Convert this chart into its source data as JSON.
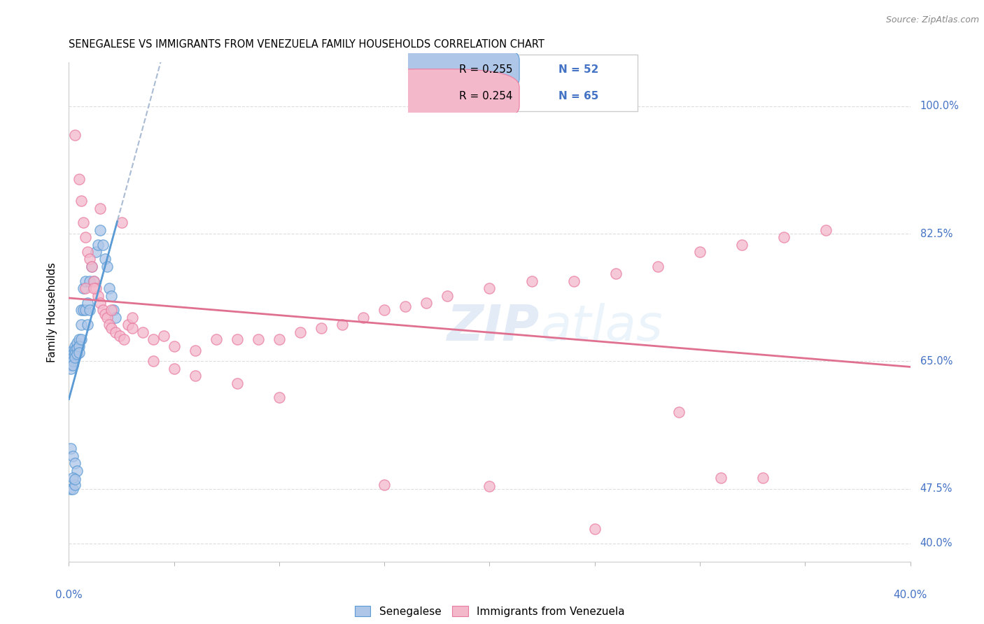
{
  "title": "SENEGALESE VS IMMIGRANTS FROM VENEZUELA FAMILY HOUSEHOLDS CORRELATION CHART",
  "source": "Source: ZipAtlas.com",
  "ylabel": "Family Households",
  "watermark_zip": "ZIP",
  "watermark_atlas": "atlas",
  "legend_blue_r": "R = 0.255",
  "legend_blue_n": "N = 52",
  "legend_pink_r": "R = 0.254",
  "legend_pink_n": "N = 65",
  "blue_face": "#aec6e8",
  "blue_edge": "#5b9bd5",
  "pink_face": "#f4b8cb",
  "pink_edge": "#e87ca0",
  "blue_line_color": "#5b9bd5",
  "pink_line_color": "#e07090",
  "dashed_line_color": "#aabbd4",
  "grid_color": "#dddddd",
  "ytick_color": "#4472c4",
  "xlabel_color": "#4472c4",
  "xlim": [
    0.0,
    0.4
  ],
  "ylim": [
    0.375,
    1.06
  ],
  "ytick_vals": [
    0.4,
    0.475,
    0.65,
    0.825,
    1.0
  ],
  "ytick_labels": [
    "40.0%",
    "47.5%",
    "65.0%",
    "82.5%",
    "100.0%"
  ],
  "blue_x": [
    0.001,
    0.001,
    0.001,
    0.001,
    0.001,
    0.002,
    0.002,
    0.002,
    0.002,
    0.002,
    0.003,
    0.003,
    0.003,
    0.003,
    0.004,
    0.004,
    0.004,
    0.005,
    0.005,
    0.005,
    0.006,
    0.006,
    0.006,
    0.007,
    0.007,
    0.008,
    0.008,
    0.009,
    0.009,
    0.01,
    0.01,
    0.011,
    0.012,
    0.013,
    0.014,
    0.015,
    0.016,
    0.017,
    0.018,
    0.019,
    0.02,
    0.021,
    0.022,
    0.001,
    0.002,
    0.003,
    0.001,
    0.002,
    0.003,
    0.004,
    0.002,
    0.003
  ],
  "blue_y": [
    0.66,
    0.655,
    0.65,
    0.645,
    0.64,
    0.665,
    0.66,
    0.655,
    0.65,
    0.645,
    0.67,
    0.665,
    0.66,
    0.655,
    0.675,
    0.668,
    0.66,
    0.68,
    0.67,
    0.662,
    0.72,
    0.7,
    0.68,
    0.75,
    0.72,
    0.76,
    0.72,
    0.73,
    0.7,
    0.76,
    0.72,
    0.78,
    0.76,
    0.8,
    0.81,
    0.83,
    0.81,
    0.79,
    0.78,
    0.75,
    0.74,
    0.72,
    0.71,
    0.475,
    0.475,
    0.48,
    0.53,
    0.52,
    0.51,
    0.5,
    0.49,
    0.488
  ],
  "pink_x": [
    0.003,
    0.005,
    0.006,
    0.007,
    0.008,
    0.009,
    0.01,
    0.011,
    0.012,
    0.013,
    0.014,
    0.015,
    0.016,
    0.017,
    0.018,
    0.019,
    0.02,
    0.022,
    0.024,
    0.026,
    0.028,
    0.03,
    0.035,
    0.04,
    0.045,
    0.05,
    0.06,
    0.07,
    0.08,
    0.09,
    0.1,
    0.11,
    0.12,
    0.13,
    0.14,
    0.15,
    0.16,
    0.17,
    0.18,
    0.2,
    0.22,
    0.24,
    0.26,
    0.28,
    0.3,
    0.32,
    0.34,
    0.36,
    0.015,
    0.025,
    0.008,
    0.012,
    0.02,
    0.03,
    0.04,
    0.05,
    0.06,
    0.08,
    0.1,
    0.29,
    0.31,
    0.33,
    0.15,
    0.2,
    0.25
  ],
  "pink_y": [
    0.96,
    0.9,
    0.87,
    0.84,
    0.82,
    0.8,
    0.79,
    0.78,
    0.76,
    0.75,
    0.74,
    0.73,
    0.72,
    0.715,
    0.71,
    0.7,
    0.695,
    0.69,
    0.685,
    0.68,
    0.7,
    0.695,
    0.69,
    0.68,
    0.685,
    0.67,
    0.665,
    0.68,
    0.68,
    0.68,
    0.68,
    0.69,
    0.695,
    0.7,
    0.71,
    0.72,
    0.725,
    0.73,
    0.74,
    0.75,
    0.76,
    0.76,
    0.77,
    0.78,
    0.8,
    0.81,
    0.82,
    0.83,
    0.86,
    0.84,
    0.75,
    0.75,
    0.72,
    0.71,
    0.65,
    0.64,
    0.63,
    0.62,
    0.6,
    0.58,
    0.49,
    0.49,
    0.48,
    0.478,
    0.42
  ],
  "figsize": [
    14.06,
    8.92
  ],
  "dpi": 100
}
